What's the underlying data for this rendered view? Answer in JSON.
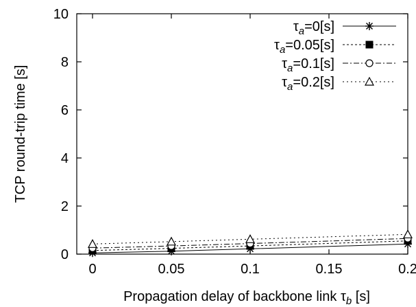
{
  "chart_data": {
    "type": "line",
    "xlabel_main": "Propagation delay of backbone link ",
    "xlabel_symbol": "τ",
    "xlabel_sub": "b",
    "xlabel_unit": " [s]",
    "ylabel": "TCP round-trip time [s]",
    "xlim": [
      -0.01,
      0.2
    ],
    "ylim": [
      0,
      10
    ],
    "x_ticks": [
      "0",
      "0.05",
      "0.1",
      "0.15",
      "0.2"
    ],
    "x_tick_values": [
      0,
      0.05,
      0.1,
      0.15,
      0.2
    ],
    "y_ticks": [
      "0",
      "2",
      "4",
      "6",
      "8",
      "10"
    ],
    "y_tick_values": [
      0,
      2,
      4,
      6,
      8,
      10
    ],
    "grid": false,
    "legend_position": "top-right",
    "x": [
      0,
      0.05,
      0.1,
      0.2
    ],
    "series": [
      {
        "name": "τa=0[s]",
        "symbol": "τ",
        "sub": "a",
        "label_rest": "=0[s]",
        "marker": "star",
        "dash": "",
        "values": [
          0.05,
          0.12,
          0.22,
          0.42
        ]
      },
      {
        "name": "τa=0.05[s]",
        "symbol": "τ",
        "sub": "a",
        "label_rest": "=0.05[s]",
        "marker": "square",
        "dash": "3,3",
        "values": [
          0.15,
          0.24,
          0.34,
          0.55
        ]
      },
      {
        "name": "τa=0.1[s]",
        "symbol": "τ",
        "sub": "a",
        "label_rest": "=0.1[s]",
        "marker": "circle",
        "dash": "8,3,2,3",
        "values": [
          0.25,
          0.34,
          0.44,
          0.65
        ]
      },
      {
        "name": "τa=0.2[s]",
        "symbol": "τ",
        "sub": "a",
        "label_rest": "=0.2[s]",
        "marker": "triangle",
        "dash": "2,4",
        "values": [
          0.42,
          0.52,
          0.62,
          0.82
        ]
      }
    ]
  }
}
